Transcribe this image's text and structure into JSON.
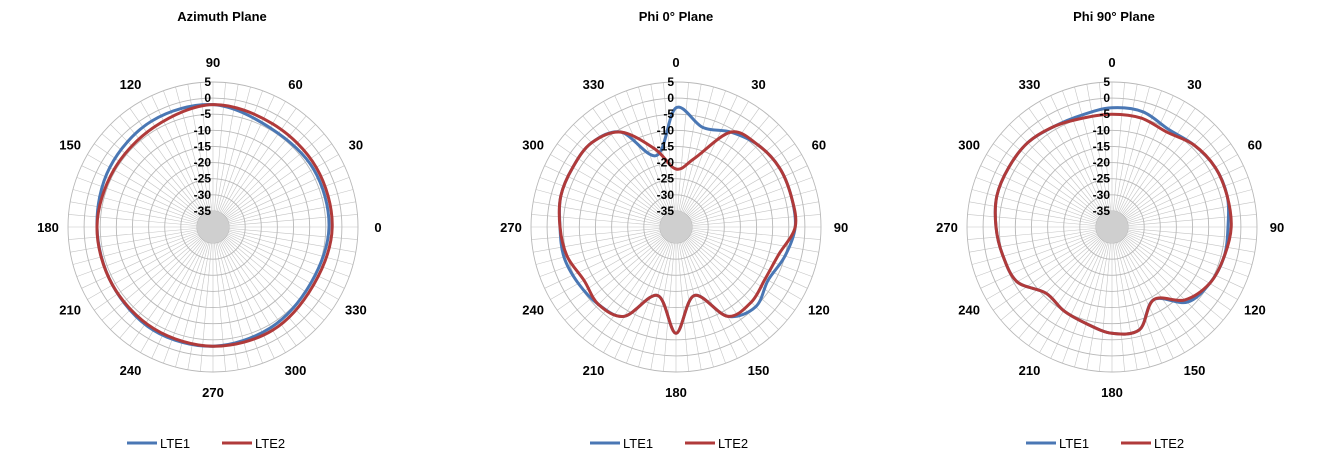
{
  "colors": {
    "LTE1": "#4a77b4",
    "LTE2": "#b03a3a",
    "grid": "#b8b8b8",
    "spoke": "#c4c4c4"
  },
  "chart_data": [
    {
      "type": "polar-line",
      "title": "Azimuth Plane",
      "angle_direction": "counterclockwise",
      "zero_position": "right",
      "angle_labels": [
        "0",
        "30",
        "60",
        "90",
        "120",
        "150",
        "180",
        "210",
        "240",
        "270",
        "300",
        "330"
      ],
      "radial_ticks": [
        5,
        0,
        -5,
        -10,
        -15,
        -20,
        -25,
        -30,
        -35
      ],
      "rlim": [
        -40,
        5
      ],
      "legend": "bottom",
      "grid": true,
      "series": [
        {
          "name": "LTE1",
          "theta": [
            0,
            30,
            60,
            90,
            120,
            150,
            180,
            210,
            240,
            270,
            300,
            330,
            360
          ],
          "r": [
            -4,
            -4,
            -4.5,
            -2,
            -2,
            -3,
            -4,
            -4,
            -3,
            -3,
            -4,
            -5,
            -4
          ]
        },
        {
          "name": "LTE2",
          "theta": [
            0,
            30,
            60,
            90,
            120,
            150,
            180,
            210,
            240,
            270,
            300,
            330,
            360
          ],
          "r": [
            -3,
            -3,
            -3,
            -2,
            -4,
            -4.5,
            -4,
            -4,
            -3.5,
            -3,
            -3,
            -4,
            -3
          ]
        }
      ]
    },
    {
      "type": "polar-line",
      "title": "Phi 0° Plane",
      "angle_direction": "clockwise",
      "zero_position": "top",
      "angle_labels": [
        "0",
        "30",
        "60",
        "90",
        "120",
        "150",
        "180",
        "210",
        "240",
        "270",
        "300",
        "330"
      ],
      "radial_ticks": [
        5,
        0,
        -5,
        -10,
        -15,
        -20,
        -25,
        -30,
        -35
      ],
      "rlim": [
        -40,
        5
      ],
      "legend": "bottom",
      "grid": true,
      "series": [
        {
          "name": "LTE1",
          "theta": [
            0,
            15,
            30,
            45,
            60,
            75,
            90,
            105,
            120,
            135,
            150,
            165,
            180,
            195,
            210,
            225,
            240,
            255,
            270,
            285,
            300,
            315,
            330,
            345,
            360
          ],
          "r": [
            -3,
            -8,
            -6,
            -4,
            -3,
            -3,
            -3,
            -5,
            -7,
            -5,
            -8,
            -18,
            -7,
            -18,
            -8,
            -6,
            -5,
            -4,
            -4,
            -3,
            -3,
            -3,
            -6,
            -17,
            -3
          ]
        },
        {
          "name": "LTE2",
          "theta": [
            0,
            15,
            30,
            45,
            60,
            75,
            90,
            105,
            120,
            135,
            150,
            165,
            180,
            195,
            210,
            225,
            240,
            255,
            270,
            285,
            300,
            315,
            330,
            345,
            360
          ],
          "r": [
            -22,
            -18,
            -6,
            -4,
            -3,
            -3,
            -3,
            -7,
            -8,
            -7,
            -8,
            -18,
            -7,
            -18,
            -8,
            -6,
            -7,
            -5,
            -4,
            -3,
            -3,
            -3,
            -6,
            -15,
            -22
          ]
        }
      ]
    },
    {
      "type": "polar-line",
      "title": "Phi 90° Plane",
      "angle_direction": "clockwise",
      "zero_position": "top",
      "angle_labels": [
        "0",
        "30",
        "60",
        "90",
        "120",
        "150",
        "180",
        "210",
        "240",
        "270",
        "300",
        "330"
      ],
      "radial_ticks": [
        5,
        0,
        -5,
        -10,
        -15,
        -20,
        -25,
        -30,
        -35
      ],
      "rlim": [
        -40,
        5
      ],
      "legend": "bottom",
      "grid": true,
      "series": [
        {
          "name": "LTE1",
          "theta": [
            0,
            15,
            30,
            45,
            60,
            75,
            90,
            105,
            120,
            135,
            150,
            165,
            180,
            195,
            210,
            225,
            240,
            255,
            270,
            285,
            300,
            315,
            330,
            345,
            360
          ],
          "r": [
            -3,
            -3,
            -5,
            -4,
            -3,
            -3,
            -4,
            -4,
            -5,
            -7,
            -14,
            -7,
            -7,
            -9,
            -10,
            -11,
            -6,
            -5,
            -4,
            -3,
            -3,
            -3,
            -4,
            -4,
            -3
          ]
        },
        {
          "name": "LTE2",
          "theta": [
            0,
            15,
            30,
            45,
            60,
            75,
            90,
            105,
            120,
            135,
            150,
            165,
            180,
            195,
            210,
            225,
            240,
            255,
            270,
            285,
            300,
            315,
            330,
            345,
            360
          ],
          "r": [
            -5,
            -5,
            -6,
            -4,
            -3,
            -3,
            -3,
            -4,
            -5,
            -8,
            -14,
            -7,
            -7,
            -9,
            -10,
            -11,
            -6,
            -5,
            -4,
            -3,
            -3,
            -3,
            -4,
            -5,
            -5
          ]
        }
      ]
    }
  ]
}
